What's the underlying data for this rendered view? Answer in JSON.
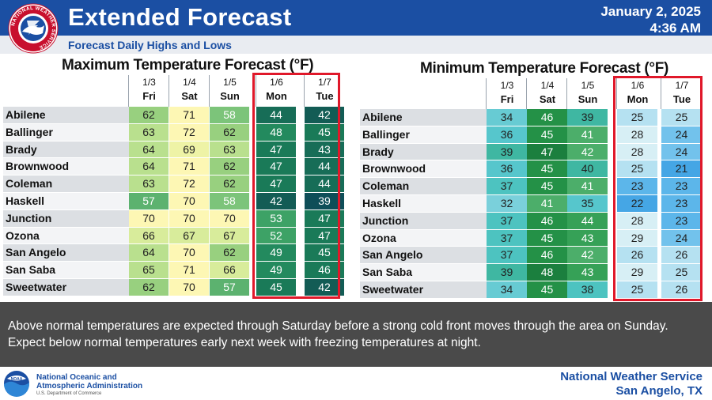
{
  "header": {
    "title": "Extended Forecast",
    "date": "January 2, 2025",
    "time": "4:36 AM",
    "subtitle": "Forecast Daily Highs and Lows",
    "logo_text": "NATIONAL WEATHER SERVICE"
  },
  "max_table": {
    "title": "Maximum Temperature Forecast (°F)",
    "columns": [
      {
        "date": "1/3",
        "day": "Fri"
      },
      {
        "date": "1/4",
        "day": "Sat"
      },
      {
        "date": "1/5",
        "day": "Sun"
      },
      {
        "date": "1/6",
        "day": "Mon"
      },
      {
        "date": "1/7",
        "day": "Tue"
      }
    ],
    "rows": [
      {
        "city": "Abilene",
        "values": [
          62,
          71,
          58,
          44,
          42
        ]
      },
      {
        "city": "Ballinger",
        "values": [
          63,
          72,
          62,
          48,
          45
        ]
      },
      {
        "city": "Brady",
        "values": [
          64,
          69,
          63,
          47,
          43
        ]
      },
      {
        "city": "Brownwood",
        "values": [
          64,
          71,
          62,
          47,
          44
        ]
      },
      {
        "city": "Coleman",
        "values": [
          63,
          72,
          62,
          47,
          44
        ]
      },
      {
        "city": "Haskell",
        "values": [
          57,
          70,
          58,
          42,
          39
        ]
      },
      {
        "city": "Junction",
        "values": [
          70,
          70,
          70,
          53,
          47
        ]
      },
      {
        "city": "Ozona",
        "values": [
          66,
          67,
          67,
          52,
          47
        ]
      },
      {
        "city": "San Angelo",
        "values": [
          64,
          70,
          62,
          49,
          45
        ]
      },
      {
        "city": "San Saba",
        "values": [
          65,
          71,
          66,
          49,
          46
        ]
      },
      {
        "city": "Sweetwater",
        "values": [
          62,
          70,
          57,
          45,
          42
        ]
      }
    ]
  },
  "min_table": {
    "title": "Minimum Temperature Forecast (°F)",
    "columns": [
      {
        "date": "1/3",
        "day": "Fri"
      },
      {
        "date": "1/4",
        "day": "Sat"
      },
      {
        "date": "1/5",
        "day": "Sun"
      },
      {
        "date": "1/6",
        "day": "Mon"
      },
      {
        "date": "1/7",
        "day": "Tue"
      }
    ],
    "rows": [
      {
        "city": "Abilene",
        "values": [
          34,
          46,
          39,
          25,
          25
        ]
      },
      {
        "city": "Ballinger",
        "values": [
          36,
          45,
          41,
          28,
          24
        ]
      },
      {
        "city": "Brady",
        "values": [
          39,
          47,
          42,
          28,
          24
        ]
      },
      {
        "city": "Brownwood",
        "values": [
          36,
          45,
          40,
          25,
          21
        ]
      },
      {
        "city": "Coleman",
        "values": [
          37,
          45,
          41,
          23,
          23
        ]
      },
      {
        "city": "Haskell",
        "values": [
          32,
          41,
          35,
          22,
          23
        ]
      },
      {
        "city": "Junction",
        "values": [
          37,
          46,
          44,
          28,
          23
        ]
      },
      {
        "city": "Ozona",
        "values": [
          37,
          45,
          43,
          29,
          24
        ]
      },
      {
        "city": "San Angelo",
        "values": [
          37,
          46,
          42,
          26,
          26
        ]
      },
      {
        "city": "San Saba",
        "values": [
          39,
          48,
          43,
          29,
          25
        ]
      },
      {
        "city": "Sweetwater",
        "values": [
          34,
          45,
          38,
          25,
          26
        ]
      }
    ]
  },
  "narrative": "Above normal temperatures are expected through Saturday before a strong cold front moves through the area on Sunday. Expect below normal temperatures early next week with freezing temperatures at night.",
  "footer": {
    "noaa_line1": "National Oceanic and",
    "noaa_line2": "Atmospheric Administration",
    "noaa_sub": "U.S. Department of Commerce",
    "noaa_logo_text": "NOAA",
    "office_line1": "National Weather Service",
    "office_line2": "San Angelo, TX"
  },
  "colors": {
    "header_blue": "#1b4fa3",
    "highlight_box": "#e0182a",
    "narrative_bg": "#4a4a4a"
  }
}
